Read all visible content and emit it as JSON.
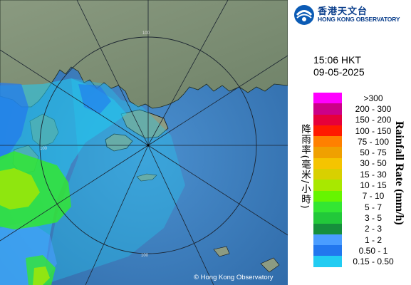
{
  "header": {
    "logo_cn": "香港天文台",
    "logo_en": "HONG KONG OBSERVATORY",
    "logo_icon": "hko-logo-icon"
  },
  "timestamp": {
    "time": "15:06 HKT",
    "date": "09-05-2025"
  },
  "legend": {
    "title_cn": "降雨率(毫米/小時)",
    "title_en": "Rainfall Rate (mm/h)",
    "items": [
      {
        "label": ">300",
        "color": "#ff00ff"
      },
      {
        "label": "200 - 300",
        "color": "#cc0088"
      },
      {
        "label": "150 - 200",
        "color": "#e6003a"
      },
      {
        "label": "100 - 150",
        "color": "#ff1a00"
      },
      {
        "label": "75 - 100",
        "color": "#ff8000"
      },
      {
        "label": "50 - 75",
        "color": "#f0a000"
      },
      {
        "label": "30 - 50",
        "color": "#f5c400"
      },
      {
        "label": "15 - 30",
        "color": "#d8d000"
      },
      {
        "label": "10 - 15",
        "color": "#a8e800"
      },
      {
        "label": "7 - 10",
        "color": "#66f500"
      },
      {
        "label": "5 - 7",
        "color": "#33e633"
      },
      {
        "label": "3 - 5",
        "color": "#22c83a"
      },
      {
        "label": "2 - 3",
        "color": "#168f3c"
      },
      {
        "label": "1 - 2",
        "color": "#4a9dff"
      },
      {
        "label": "0.50 - 1",
        "color": "#2277ee"
      },
      {
        "label": "0.15 - 0.50",
        "color": "#22ccf2"
      }
    ]
  },
  "map": {
    "copyright": "© Hong Kong Observatory",
    "range_labels": [
      "100",
      "100",
      "100"
    ],
    "colors": {
      "land": "#7d8f77",
      "sea": "#3c7fc0",
      "radar_light": "#22ccf2",
      "radar_medium": "#2277ee"
    }
  }
}
